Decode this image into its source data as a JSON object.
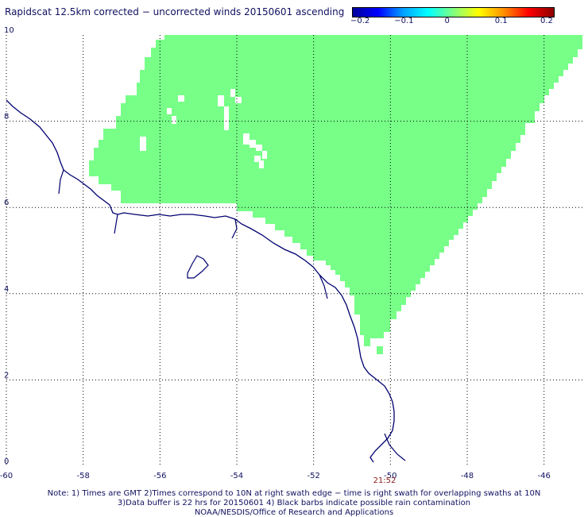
{
  "title": "Rapidscat 12.5km corrected − uncorrected winds 20150601 ascending",
  "colorbar": {
    "tick_labels": [
      "−0.2",
      "−0.1",
      "0",
      "0.1",
      "0.2"
    ],
    "colors": [
      "#00009a",
      "#0000ff",
      "#00a0ff",
      "#00ffff",
      "#7fff7f",
      "#ffff00",
      "#ff9000",
      "#ff0000",
      "#8b0000"
    ]
  },
  "axes": {
    "x_ticks": [
      -60,
      -58,
      -56,
      -54,
      -52,
      -50,
      -48,
      -46
    ],
    "x_tick_labels": [
      "-60",
      "-58",
      "-56",
      "-54",
      "-52",
      "-50",
      "-48",
      "-46"
    ],
    "y_ticks": [
      0,
      2,
      4,
      6,
      8,
      10
    ],
    "y_tick_labels": [
      "0",
      "2",
      "4",
      "6",
      "8",
      "10"
    ],
    "lon_range": [
      -60,
      -45
    ],
    "lat_range": [
      0,
      10
    ],
    "grid": "dotted"
  },
  "swath": {
    "value": 0,
    "fill_color": "#77ff88",
    "coastline_color": "#000070"
  },
  "time_label": "21:52",
  "notes": [
    "Note: 1) Times are GMT 2)Times correspond to 10N at right swath edge − time is right swath for overlapping swaths at 10N",
    "3)Data buffer is 22 hrs for 20150601 4) Black barbs indicate possible rain contamination",
    "NOAA/NESDIS/Office of Research and Applications"
  ]
}
